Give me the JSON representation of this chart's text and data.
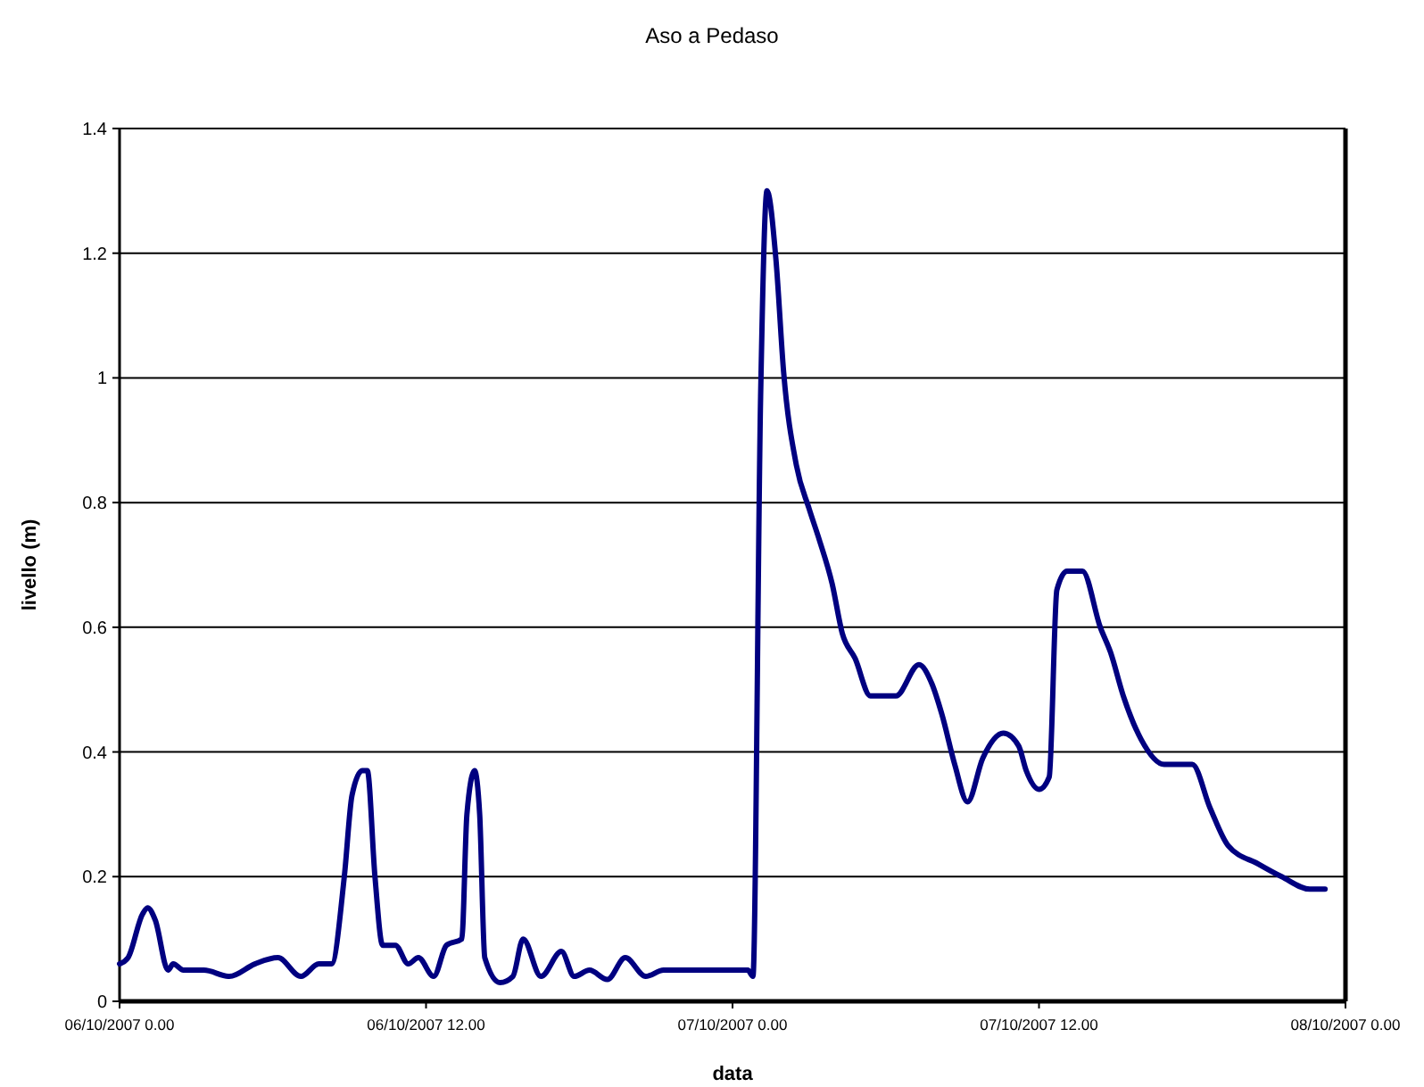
{
  "chart_data": {
    "type": "line",
    "title": "Aso a Pedaso",
    "xlabel": "data",
    "ylabel": "livello (m)",
    "xlim": [
      "2007-10-06T00:00",
      "2007-10-08T00:00"
    ],
    "xticks": [
      {
        "value": "2007-10-06T00:00",
        "label": "06/10/2007 0.00"
      },
      {
        "value": "2007-10-06T12:00",
        "label": "06/10/2007 12.00"
      },
      {
        "value": "2007-10-07T00:00",
        "label": "07/10/2007 0.00"
      },
      {
        "value": "2007-10-07T12:00",
        "label": "07/10/2007 12.00"
      },
      {
        "value": "2007-10-08T00:00",
        "label": "08/10/2007 0.00"
      }
    ],
    "ylim": [
      0,
      1.4
    ],
    "yticks": [
      0,
      0.2,
      0.4,
      0.6,
      0.8,
      1,
      1.2,
      1.4
    ],
    "grid": "y",
    "marker": "none",
    "line_style": "solid",
    "series": [
      {
        "color": "#000080",
        "x": [
          "2007-10-06T00:00",
          "2007-10-06T00:20",
          "2007-10-06T00:54",
          "2007-10-06T01:06",
          "2007-10-06T01:24",
          "2007-10-06T01:54",
          "2007-10-06T02:06",
          "2007-10-06T02:30",
          "2007-10-06T03:18",
          "2007-10-06T04:18",
          "2007-10-06T05:18",
          "2007-10-06T06:12",
          "2007-10-06T07:06",
          "2007-10-06T07:48",
          "2007-10-06T08:18",
          "2007-10-06T08:48",
          "2007-10-06T09:06",
          "2007-10-06T09:30",
          "2007-10-06T09:42",
          "2007-10-06T10:00",
          "2007-10-06T10:18",
          "2007-10-06T10:48",
          "2007-10-06T11:18",
          "2007-10-06T11:42",
          "2007-10-06T12:18",
          "2007-10-06T12:48",
          "2007-10-06T13:24",
          "2007-10-06T13:36",
          "2007-10-06T13:54",
          "2007-10-06T14:06",
          "2007-10-06T14:18",
          "2007-10-06T14:54",
          "2007-10-06T15:24",
          "2007-10-06T15:48",
          "2007-10-06T16:30",
          "2007-10-06T17:18",
          "2007-10-06T17:48",
          "2007-10-06T18:24",
          "2007-10-06T19:06",
          "2007-10-06T19:48",
          "2007-10-06T20:36",
          "2007-10-06T21:18",
          "2007-10-07T00:36",
          "2007-10-07T00:48",
          "2007-10-07T01:06",
          "2007-10-07T01:21",
          "2007-10-07T01:42",
          "2007-10-07T02:00",
          "2007-10-07T02:30",
          "2007-10-07T03:00",
          "2007-10-07T03:24",
          "2007-10-07T03:54",
          "2007-10-07T04:18",
          "2007-10-07T04:48",
          "2007-10-07T05:24",
          "2007-10-07T06:24",
          "2007-10-07T07:18",
          "2007-10-07T07:48",
          "2007-10-07T08:12",
          "2007-10-07T08:42",
          "2007-10-07T09:12",
          "2007-10-07T09:48",
          "2007-10-07T10:36",
          "2007-10-07T11:12",
          "2007-10-07T11:30",
          "2007-10-07T12:00",
          "2007-10-07T12:24",
          "2007-10-07T12:42",
          "2007-10-07T13:06",
          "2007-10-07T13:42",
          "2007-10-07T14:24",
          "2007-10-07T14:48",
          "2007-10-07T15:18",
          "2007-10-07T16:00",
          "2007-10-07T16:54",
          "2007-10-07T18:00",
          "2007-10-07T18:42",
          "2007-10-07T19:24",
          "2007-10-07T20:36",
          "2007-10-07T21:30",
          "2007-10-07T22:36",
          "2007-10-07T23:12"
        ],
        "values": [
          0.06,
          0.07,
          0.14,
          0.15,
          0.13,
          0.05,
          0.06,
          0.05,
          0.05,
          0.04,
          0.06,
          0.07,
          0.04,
          0.06,
          0.06,
          0.2,
          0.33,
          0.37,
          0.37,
          0.2,
          0.09,
          0.09,
          0.06,
          0.07,
          0.04,
          0.09,
          0.1,
          0.3,
          0.37,
          0.3,
          0.07,
          0.03,
          0.04,
          0.1,
          0.04,
          0.08,
          0.04,
          0.05,
          0.035,
          0.07,
          0.04,
          0.05,
          0.05,
          0.04,
          0.97,
          1.3,
          1.19,
          1.01,
          0.86,
          0.79,
          0.74,
          0.67,
          0.59,
          0.55,
          0.49,
          0.49,
          0.54,
          0.51,
          0.46,
          0.38,
          0.32,
          0.39,
          0.43,
          0.41,
          0.37,
          0.34,
          0.36,
          0.66,
          0.69,
          0.69,
          0.6,
          0.56,
          0.49,
          0.42,
          0.38,
          0.38,
          0.31,
          0.25,
          0.22,
          0.2,
          0.18,
          0.18
        ]
      }
    ]
  }
}
